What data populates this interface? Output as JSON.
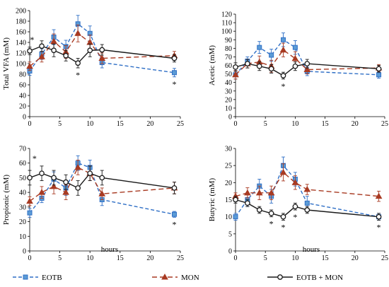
{
  "series_styles": [
    {
      "name": "EOTB",
      "color": "#2f6fc6",
      "dash": "5,3",
      "marker": "square"
    },
    {
      "name": "MON",
      "color": "#a83a22",
      "dash": "7,4",
      "marker": "triangle"
    },
    {
      "name": "EOTB + MON",
      "color": "#1a1a1a",
      "dash": "",
      "marker": "circle"
    }
  ],
  "x_unit_label": "hours",
  "chart_data": [
    {
      "type": "line",
      "title": "",
      "xlabel": "",
      "ylabel": "Total VFA (mM)",
      "xlim": [
        0,
        25
      ],
      "ylim": [
        0,
        200
      ],
      "xticks": [
        0,
        5,
        10,
        15,
        20,
        25
      ],
      "yticks": [
        0,
        20,
        40,
        60,
        80,
        100,
        120,
        140,
        160,
        180,
        200
      ],
      "x": [
        0,
        2,
        4,
        6,
        8,
        10,
        12,
        24
      ],
      "series": [
        {
          "name": "EOTB",
          "values": [
            86,
            118,
            150,
            132,
            175,
            157,
            102,
            83
          ],
          "err": [
            8,
            10,
            14,
            12,
            16,
            14,
            10,
            8
          ]
        },
        {
          "name": "MON",
          "values": [
            95,
            113,
            142,
            122,
            157,
            140,
            110,
            115
          ],
          "err": [
            8,
            10,
            14,
            12,
            16,
            14,
            10,
            8
          ]
        },
        {
          "name": "EOTB + MON",
          "values": [
            124,
            133,
            125,
            115,
            101,
            125,
            126,
            110
          ],
          "err": [
            7,
            10,
            12,
            10,
            9,
            12,
            10,
            7
          ]
        }
      ],
      "annotations": [
        {
          "x": 0.4,
          "text": "*"
        },
        {
          "x": 8,
          "text": "*"
        },
        {
          "x": 24,
          "text": "*"
        }
      ]
    },
    {
      "type": "line",
      "title": "",
      "xlabel": "",
      "ylabel": "Acetic (mM)",
      "xlim": [
        0,
        25
      ],
      "ylim": [
        0,
        120
      ],
      "xticks": [
        0,
        5,
        10,
        15,
        20,
        25
      ],
      "yticks": [
        0,
        10,
        20,
        30,
        40,
        50,
        60,
        70,
        80,
        90,
        100,
        110,
        120
      ],
      "x": [
        0,
        2,
        4,
        6,
        8,
        10,
        12,
        24
      ],
      "series": [
        {
          "name": "EOTB",
          "values": [
            49,
            65,
            81,
            72,
            90,
            81,
            53,
            49
          ],
          "err": [
            5,
            5,
            7,
            7,
            8,
            8,
            5,
            4
          ]
        },
        {
          "name": "MON",
          "values": [
            49,
            62,
            64,
            59,
            78,
            68,
            55,
            57
          ],
          "err": [
            5,
            5,
            7,
            7,
            8,
            8,
            5,
            4
          ]
        },
        {
          "name": "EOTB + MON",
          "values": [
            58,
            62,
            59,
            56,
            48,
            59,
            62,
            56
          ],
          "err": [
            5,
            5,
            5,
            5,
            4,
            5,
            5,
            4
          ]
        }
      ],
      "annotations": [
        {
          "x": 8,
          "text": "*"
        }
      ]
    },
    {
      "type": "line",
      "title": "",
      "xlabel": "",
      "ylabel": "Propionic (mM)",
      "xlim": [
        0,
        25
      ],
      "ylim": [
        0,
        70
      ],
      "xticks": [
        0,
        5,
        10,
        15,
        20,
        25
      ],
      "yticks": [
        0,
        10,
        20,
        30,
        40,
        50,
        60,
        70
      ],
      "x": [
        0,
        2,
        4,
        6,
        8,
        10,
        12,
        24
      ],
      "series": [
        {
          "name": "EOTB",
          "values": [
            26,
            36,
            49,
            43,
            60,
            57,
            35,
            25
          ],
          "err": [
            3,
            3,
            5,
            5,
            5,
            5,
            4,
            2
          ]
        },
        {
          "name": "MON",
          "values": [
            34,
            40,
            44,
            40,
            57,
            53,
            39,
            43
          ],
          "err": [
            3,
            4,
            5,
            5,
            5,
            5,
            4,
            4
          ]
        },
        {
          "name": "EOTB + MON",
          "values": [
            50,
            53,
            50,
            47,
            43,
            53,
            50,
            43
          ],
          "err": [
            5,
            5,
            5,
            5,
            5,
            5,
            5,
            4
          ]
        }
      ],
      "annotations": [
        {
          "x": 0.8,
          "text": "*"
        },
        {
          "x": 24,
          "text": "*"
        }
      ]
    },
    {
      "type": "line",
      "title": "",
      "xlabel": "",
      "ylabel": "Butyric (mM)",
      "xlim": [
        0,
        25
      ],
      "ylim": [
        0,
        30
      ],
      "xticks": [
        0,
        5,
        10,
        15,
        20,
        25
      ],
      "yticks": [
        0,
        5,
        10,
        15,
        20,
        25,
        30
      ],
      "x": [
        0,
        2,
        4,
        6,
        8,
        10,
        12,
        24
      ],
      "series": [
        {
          "name": "EOTB",
          "values": [
            10,
            15,
            19,
            16,
            25,
            21,
            14,
            10
          ],
          "err": [
            1,
            2,
            2,
            2,
            2.5,
            2,
            2,
            1
          ]
        },
        {
          "name": "MON",
          "values": [
            16,
            17,
            17,
            17,
            23,
            20,
            18,
            16
          ],
          "err": [
            1,
            1.5,
            2,
            2,
            2.5,
            2,
            1.5,
            1.5
          ]
        },
        {
          "name": "EOTB + MON",
          "values": [
            15,
            14,
            12,
            11,
            10,
            13,
            12,
            10
          ],
          "err": [
            1,
            1,
            1,
            1,
            1,
            1,
            1,
            1
          ]
        }
      ],
      "annotations": [
        {
          "x": 6,
          "text": "*"
        },
        {
          "x": 8,
          "text": "*"
        },
        {
          "x": 10,
          "text": "*"
        },
        {
          "x": 24,
          "text": "*"
        }
      ]
    }
  ]
}
